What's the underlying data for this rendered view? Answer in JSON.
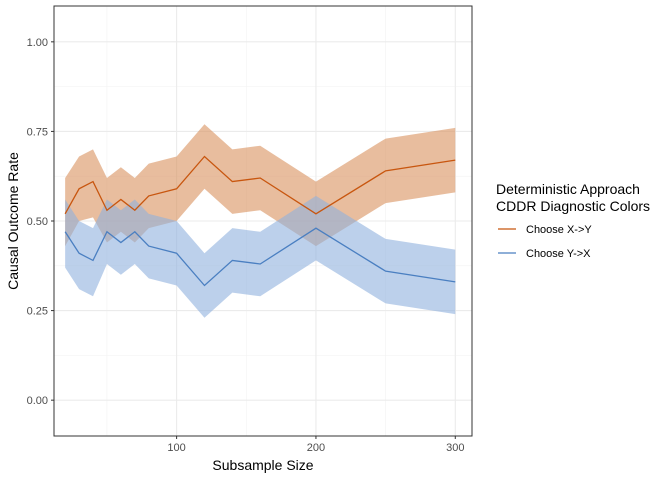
{
  "chart_data": {
    "type": "line",
    "xlabel": "Subsample Size",
    "ylabel": "Causal Outcome Rate",
    "xlim": [
      12,
      312
    ],
    "ylim": [
      -0.1,
      1.1
    ],
    "x_ticks": [
      100,
      200,
      300
    ],
    "x_tick_labels": [
      "100",
      "200",
      "300"
    ],
    "y_ticks": [
      0,
      0.25,
      0.5,
      0.75,
      1
    ],
    "y_tick_labels": [
      "0.00",
      "0.25",
      "0.50",
      "0.75",
      "1.00"
    ],
    "grid": true,
    "legend": {
      "position": "right",
      "title_lines": [
        "Deterministic Approach",
        "CDDR Diagnostic Colors"
      ]
    },
    "x": [
      20,
      30,
      40,
      50,
      60,
      70,
      80,
      100,
      120,
      140,
      160,
      200,
      250,
      300
    ],
    "series": [
      {
        "name": "Choose X->Y",
        "color": "#c8560f",
        "ribbon_color": "#d9915e",
        "values": [
          0.52,
          0.59,
          0.61,
          0.53,
          0.56,
          0.53,
          0.57,
          0.59,
          0.68,
          0.61,
          0.62,
          0.52,
          0.64,
          0.67
        ],
        "lower": [
          0.43,
          0.5,
          0.51,
          0.44,
          0.47,
          0.44,
          0.48,
          0.5,
          0.59,
          0.52,
          0.53,
          0.43,
          0.55,
          0.58
        ],
        "upper": [
          0.62,
          0.68,
          0.7,
          0.62,
          0.65,
          0.62,
          0.66,
          0.68,
          0.77,
          0.7,
          0.71,
          0.61,
          0.73,
          0.76
        ]
      },
      {
        "name": "Choose Y->X",
        "color": "#4a7fc1",
        "ribbon_color": "#8fb0dd",
        "values": [
          0.47,
          0.41,
          0.39,
          0.47,
          0.44,
          0.47,
          0.43,
          0.41,
          0.32,
          0.39,
          0.38,
          0.48,
          0.36,
          0.33
        ],
        "lower": [
          0.37,
          0.31,
          0.29,
          0.38,
          0.35,
          0.38,
          0.34,
          0.32,
          0.23,
          0.3,
          0.29,
          0.39,
          0.27,
          0.24
        ],
        "upper": [
          0.56,
          0.5,
          0.48,
          0.56,
          0.53,
          0.56,
          0.52,
          0.5,
          0.41,
          0.48,
          0.47,
          0.57,
          0.45,
          0.42
        ]
      }
    ]
  }
}
